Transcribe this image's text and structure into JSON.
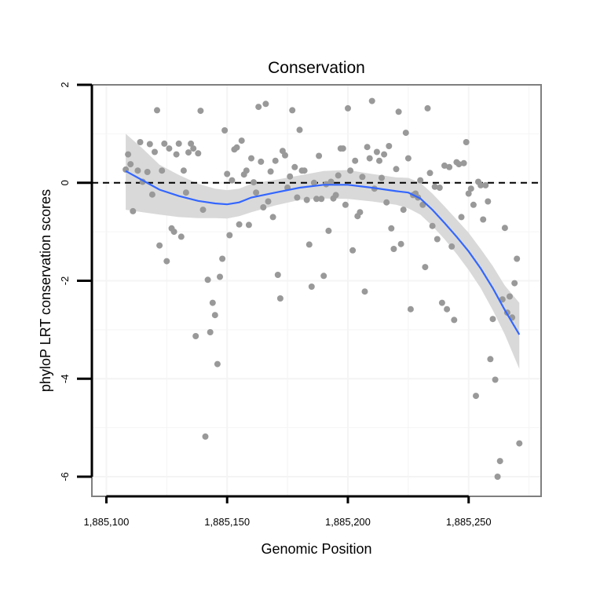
{
  "chart_data": {
    "type": "scatter",
    "title": "Conservation",
    "xlabel": "Genomic Position",
    "ylabel": "phyloP LRT conservation scores",
    "xlim": [
      1885094,
      1885280
    ],
    "ylim": [
      -6.4,
      2.0
    ],
    "x_ticks": [
      {
        "value": 1885100,
        "label": "1,885,100"
      },
      {
        "value": 1885150,
        "label": "1,885,150"
      },
      {
        "value": 1885200,
        "label": "1,885,200"
      },
      {
        "value": 1885250,
        "label": "1,885,250"
      }
    ],
    "y_ticks": [
      {
        "value": 2,
        "label": "2"
      },
      {
        "value": 0,
        "label": "0"
      },
      {
        "value": -2,
        "label": "-2"
      },
      {
        "value": -4,
        "label": "-4"
      },
      {
        "value": -6,
        "label": "-6"
      }
    ],
    "reference_line": {
      "y": 0,
      "style": "dashed",
      "color": "#000000"
    },
    "grid": true,
    "colors": {
      "points": "#999999",
      "smooth_line": "#3366ff",
      "confidence_band": "#d9d9d9",
      "panel_border": "#7f7f7f",
      "grid": "#f4f4f4"
    },
    "points": [
      [
        1885108,
        0.27
      ],
      [
        1885109,
        0.58
      ],
      [
        1885110,
        0.38
      ],
      [
        1885111,
        -0.58
      ],
      [
        1885113,
        0.25
      ],
      [
        1885114,
        0.83
      ],
      [
        1885115,
        0.02
      ],
      [
        1885117,
        0.22
      ],
      [
        1885118,
        0.79
      ],
      [
        1885119,
        -0.24
      ],
      [
        1885120,
        0.63
      ],
      [
        1885121,
        1.48
      ],
      [
        1885122,
        -1.28
      ],
      [
        1885123,
        0.25
      ],
      [
        1885124,
        0.8
      ],
      [
        1885125,
        -1.6
      ],
      [
        1885126,
        0.7
      ],
      [
        1885127,
        -0.93
      ],
      [
        1885128,
        -1.0
      ],
      [
        1885129,
        0.58
      ],
      [
        1885130,
        0.8
      ],
      [
        1885131,
        -1.1
      ],
      [
        1885132,
        0.25
      ],
      [
        1885133,
        -0.2
      ],
      [
        1885134,
        0.62
      ],
      [
        1885135,
        0.8
      ],
      [
        1885136,
        0.7
      ],
      [
        1885137,
        -3.13
      ],
      [
        1885138,
        0.6
      ],
      [
        1885139,
        1.47
      ],
      [
        1885140,
        -0.55
      ],
      [
        1885141,
        -5.18
      ],
      [
        1885142,
        -1.98
      ],
      [
        1885143,
        -3.05
      ],
      [
        1885144,
        -2.45
      ],
      [
        1885145,
        -2.7
      ],
      [
        1885146,
        -3.7
      ],
      [
        1885147,
        -1.92
      ],
      [
        1885148,
        -1.55
      ],
      [
        1885149,
        1.07
      ],
      [
        1885150,
        0.18
      ],
      [
        1885151,
        -1.07
      ],
      [
        1885152,
        0.05
      ],
      [
        1885153,
        0.68
      ],
      [
        1885154,
        0.72
      ],
      [
        1885155,
        -0.85
      ],
      [
        1885156,
        0.86
      ],
      [
        1885157,
        0.17
      ],
      [
        1885158,
        0.25
      ],
      [
        1885159,
        -0.86
      ],
      [
        1885160,
        0.5
      ],
      [
        1885161,
        0.01
      ],
      [
        1885162,
        -0.2
      ],
      [
        1885163,
        1.55
      ],
      [
        1885164,
        0.43
      ],
      [
        1885165,
        -0.5
      ],
      [
        1885166,
        1.61
      ],
      [
        1885167,
        -0.38
      ],
      [
        1885168,
        0.23
      ],
      [
        1885169,
        -0.7
      ],
      [
        1885170,
        0.45
      ],
      [
        1885171,
        -1.88
      ],
      [
        1885172,
        -2.36
      ],
      [
        1885173,
        0.65
      ],
      [
        1885174,
        0.56
      ],
      [
        1885175,
        -0.1
      ],
      [
        1885176,
        0.13
      ],
      [
        1885177,
        1.48
      ],
      [
        1885178,
        0.32
      ],
      [
        1885179,
        -0.3
      ],
      [
        1885180,
        1.08
      ],
      [
        1885181,
        0.25
      ],
      [
        1885182,
        0.25
      ],
      [
        1885183,
        -0.35
      ],
      [
        1885184,
        -1.26
      ],
      [
        1885185,
        -2.12
      ],
      [
        1885186,
        0.0
      ],
      [
        1885187,
        -0.33
      ],
      [
        1885188,
        0.55
      ],
      [
        1885189,
        -0.33
      ],
      [
        1885190,
        -1.9
      ],
      [
        1885191,
        -0.03
      ],
      [
        1885192,
        -0.98
      ],
      [
        1885193,
        0.02
      ],
      [
        1885194,
        -0.32
      ],
      [
        1885195,
        -0.25
      ],
      [
        1885196,
        0.15
      ],
      [
        1885197,
        0.7
      ],
      [
        1885198,
        0.7
      ],
      [
        1885199,
        -0.45
      ],
      [
        1885200,
        1.52
      ],
      [
        1885201,
        0.25
      ],
      [
        1885202,
        -1.38
      ],
      [
        1885203,
        0.45
      ],
      [
        1885204,
        -0.68
      ],
      [
        1885205,
        -0.6
      ],
      [
        1885206,
        0.12
      ],
      [
        1885207,
        -2.22
      ],
      [
        1885208,
        0.73
      ],
      [
        1885209,
        0.5
      ],
      [
        1885210,
        1.67
      ],
      [
        1885211,
        -0.12
      ],
      [
        1885212,
        0.63
      ],
      [
        1885213,
        0.45
      ],
      [
        1885214,
        0.1
      ],
      [
        1885215,
        0.58
      ],
      [
        1885216,
        -0.4
      ],
      [
        1885217,
        0.75
      ],
      [
        1885218,
        -0.93
      ],
      [
        1885219,
        -1.35
      ],
      [
        1885220,
        0.28
      ],
      [
        1885221,
        1.45
      ],
      [
        1885222,
        -1.25
      ],
      [
        1885223,
        -0.55
      ],
      [
        1885224,
        1.02
      ],
      [
        1885225,
        0.5
      ],
      [
        1885226,
        -2.58
      ],
      [
        1885227,
        -0.25
      ],
      [
        1885228,
        -0.22
      ],
      [
        1885229,
        -0.3
      ],
      [
        1885230,
        0.05
      ],
      [
        1885231,
        -0.45
      ],
      [
        1885232,
        -1.72
      ],
      [
        1885233,
        1.52
      ],
      [
        1885234,
        0.2
      ],
      [
        1885235,
        -0.88
      ],
      [
        1885236,
        -0.08
      ],
      [
        1885237,
        -1.15
      ],
      [
        1885238,
        -0.1
      ],
      [
        1885239,
        -2.45
      ],
      [
        1885240,
        0.35
      ],
      [
        1885241,
        -2.58
      ],
      [
        1885242,
        0.32
      ],
      [
        1885243,
        -1.3
      ],
      [
        1885244,
        -2.8
      ],
      [
        1885245,
        0.42
      ],
      [
        1885246,
        0.38
      ],
      [
        1885247,
        -0.7
      ],
      [
        1885248,
        0.4
      ],
      [
        1885249,
        0.83
      ],
      [
        1885250,
        -0.22
      ],
      [
        1885251,
        -0.12
      ],
      [
        1885252,
        -0.45
      ],
      [
        1885253,
        -4.35
      ],
      [
        1885254,
        0.02
      ],
      [
        1885255,
        -0.05
      ],
      [
        1885256,
        -0.75
      ],
      [
        1885257,
        -0.05
      ],
      [
        1885258,
        -0.38
      ],
      [
        1885259,
        -3.6
      ],
      [
        1885260,
        -2.78
      ],
      [
        1885261,
        -4.02
      ],
      [
        1885262,
        -6.0
      ],
      [
        1885263,
        -5.68
      ],
      [
        1885264,
        -2.38
      ],
      [
        1885265,
        -0.92
      ],
      [
        1885266,
        -2.65
      ],
      [
        1885267,
        -2.32
      ],
      [
        1885268,
        -2.75
      ],
      [
        1885269,
        -2.05
      ],
      [
        1885270,
        -1.55
      ],
      [
        1885271,
        -5.32
      ]
    ],
    "smooth_fit": {
      "method": "loess",
      "x": [
        1885108,
        1885115,
        1885122,
        1885130,
        1885138,
        1885145,
        1885150,
        1885155,
        1885160,
        1885170,
        1885180,
        1885190,
        1885200,
        1885210,
        1885220,
        1885225,
        1885230,
        1885235,
        1885240,
        1885245,
        1885250,
        1885255,
        1885260,
        1885265,
        1885271
      ],
      "y": [
        0.24,
        0.05,
        -0.14,
        -0.27,
        -0.37,
        -0.42,
        -0.44,
        -0.4,
        -0.3,
        -0.2,
        -0.1,
        -0.04,
        -0.04,
        -0.1,
        -0.17,
        -0.2,
        -0.32,
        -0.55,
        -0.82,
        -1.1,
        -1.4,
        -1.75,
        -2.15,
        -2.6,
        -3.1
      ],
      "lower": [
        -0.55,
        -0.6,
        -0.65,
        -0.7,
        -0.72,
        -0.72,
        -0.73,
        -0.68,
        -0.6,
        -0.46,
        -0.35,
        -0.32,
        -0.33,
        -0.38,
        -0.45,
        -0.52,
        -0.65,
        -0.88,
        -1.15,
        -1.45,
        -1.78,
        -2.15,
        -2.6,
        -3.1,
        -3.8
      ],
      "upper": [
        1.0,
        0.7,
        0.37,
        0.16,
        -0.02,
        -0.12,
        -0.15,
        -0.12,
        -0.02,
        0.06,
        0.15,
        0.24,
        0.26,
        0.18,
        0.11,
        0.1,
        0.0,
        -0.22,
        -0.48,
        -0.75,
        -1.02,
        -1.35,
        -1.7,
        -2.1,
        -2.45
      ]
    }
  }
}
